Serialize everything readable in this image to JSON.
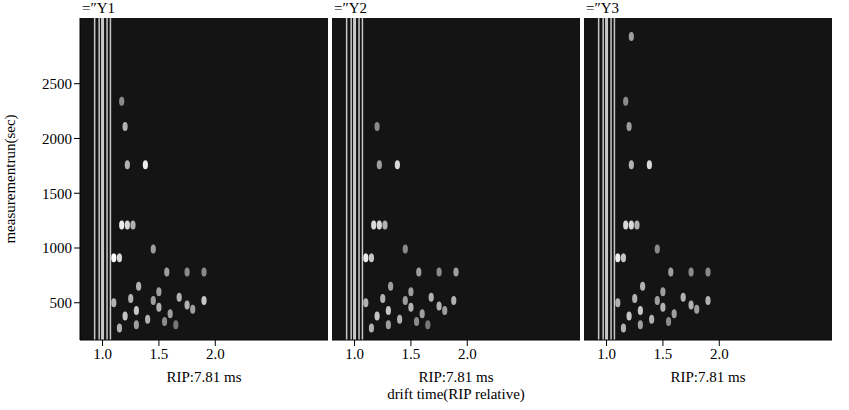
{
  "chart_data": {
    "type": "scatter",
    "ylabel": "measurementrun(sec)",
    "xlabel": "drift time(RIP relative)",
    "panel_xlabel": "RIP:7.81 ms",
    "xlim": [
      0.8,
      3.0
    ],
    "xticks": [
      {
        "value": 1,
        "label": "1.0"
      },
      {
        "value": 1.5,
        "label": "1.5"
      },
      {
        "value": 2,
        "label": "2.0"
      }
    ],
    "ylim": [
      160,
      3100
    ],
    "yticks": [
      500,
      1000,
      1500,
      2000,
      2500
    ],
    "grid": false,
    "panels": [
      {
        "title": "=″Y1",
        "streaks": [
          0.93,
          0.97,
          1.0,
          1.04,
          1.07
        ],
        "spots": [
          {
            "x": 1.38,
            "y": 1760,
            "intensity": 0.9
          },
          {
            "x": 1.22,
            "y": 1760,
            "intensity": 0.6
          },
          {
            "x": 1.17,
            "y": 1210,
            "intensity": 0.9
          },
          {
            "x": 1.22,
            "y": 1210,
            "intensity": 0.8
          },
          {
            "x": 1.27,
            "y": 1210,
            "intensity": 0.6
          },
          {
            "x": 1.1,
            "y": 910,
            "intensity": 1
          },
          {
            "x": 1.15,
            "y": 910,
            "intensity": 0.8
          },
          {
            "x": 1.2,
            "y": 2110,
            "intensity": 0.6
          },
          {
            "x": 1.17,
            "y": 2340,
            "intensity": 0.4
          },
          {
            "x": 1.45,
            "y": 990,
            "intensity": 0.5
          },
          {
            "x": 1.57,
            "y": 780,
            "intensity": 0.5
          },
          {
            "x": 1.75,
            "y": 780,
            "intensity": 0.4
          },
          {
            "x": 1.9,
            "y": 780,
            "intensity": 0.4
          },
          {
            "x": 1.32,
            "y": 650,
            "intensity": 0.6
          },
          {
            "x": 1.5,
            "y": 600,
            "intensity": 0.5
          },
          {
            "x": 1.68,
            "y": 550,
            "intensity": 0.6
          },
          {
            "x": 1.9,
            "y": 520,
            "intensity": 0.7
          },
          {
            "x": 1.75,
            "y": 480,
            "intensity": 0.6
          },
          {
            "x": 1.5,
            "y": 460,
            "intensity": 0.6
          },
          {
            "x": 1.3,
            "y": 430,
            "intensity": 0.7
          },
          {
            "x": 1.6,
            "y": 400,
            "intensity": 0.5
          },
          {
            "x": 1.4,
            "y": 350,
            "intensity": 0.6
          },
          {
            "x": 1.2,
            "y": 380,
            "intensity": 0.7
          },
          {
            "x": 1.55,
            "y": 330,
            "intensity": 0.4
          },
          {
            "x": 1.3,
            "y": 300,
            "intensity": 0.5
          },
          {
            "x": 1.15,
            "y": 270,
            "intensity": 0.6
          },
          {
            "x": 1.1,
            "y": 500,
            "intensity": 0.6
          },
          {
            "x": 1.25,
            "y": 540,
            "intensity": 0.6
          },
          {
            "x": 1.45,
            "y": 520,
            "intensity": 0.5
          },
          {
            "x": 1.8,
            "y": 440,
            "intensity": 0.5
          },
          {
            "x": 1.65,
            "y": 300,
            "intensity": 0.3
          }
        ]
      },
      {
        "title": "=″Y2",
        "streaks": [
          0.93,
          0.97,
          1.0,
          1.04,
          1.07
        ],
        "spots": [
          {
            "x": 1.38,
            "y": 1760,
            "intensity": 0.8
          },
          {
            "x": 1.22,
            "y": 1760,
            "intensity": 0.5
          },
          {
            "x": 1.17,
            "y": 1210,
            "intensity": 0.8
          },
          {
            "x": 1.22,
            "y": 1210,
            "intensity": 0.8
          },
          {
            "x": 1.27,
            "y": 1210,
            "intensity": 0.6
          },
          {
            "x": 1.1,
            "y": 910,
            "intensity": 0.9
          },
          {
            "x": 1.15,
            "y": 910,
            "intensity": 0.7
          },
          {
            "x": 1.2,
            "y": 2110,
            "intensity": 0.4
          },
          {
            "x": 1.45,
            "y": 990,
            "intensity": 0.4
          },
          {
            "x": 1.57,
            "y": 780,
            "intensity": 0.5
          },
          {
            "x": 1.75,
            "y": 780,
            "intensity": 0.4
          },
          {
            "x": 1.9,
            "y": 780,
            "intensity": 0.5
          },
          {
            "x": 1.32,
            "y": 650,
            "intensity": 0.5
          },
          {
            "x": 1.5,
            "y": 600,
            "intensity": 0.5
          },
          {
            "x": 1.68,
            "y": 550,
            "intensity": 0.6
          },
          {
            "x": 1.88,
            "y": 520,
            "intensity": 0.6
          },
          {
            "x": 1.75,
            "y": 470,
            "intensity": 0.6
          },
          {
            "x": 1.5,
            "y": 460,
            "intensity": 0.6
          },
          {
            "x": 1.3,
            "y": 430,
            "intensity": 0.7
          },
          {
            "x": 1.6,
            "y": 400,
            "intensity": 0.5
          },
          {
            "x": 1.4,
            "y": 350,
            "intensity": 0.6
          },
          {
            "x": 1.2,
            "y": 380,
            "intensity": 0.7
          },
          {
            "x": 1.55,
            "y": 330,
            "intensity": 0.4
          },
          {
            "x": 1.3,
            "y": 300,
            "intensity": 0.5
          },
          {
            "x": 1.15,
            "y": 270,
            "intensity": 0.6
          },
          {
            "x": 1.1,
            "y": 500,
            "intensity": 0.6
          },
          {
            "x": 1.25,
            "y": 540,
            "intensity": 0.6
          },
          {
            "x": 1.45,
            "y": 520,
            "intensity": 0.5
          },
          {
            "x": 1.8,
            "y": 430,
            "intensity": 0.5
          },
          {
            "x": 1.65,
            "y": 300,
            "intensity": 0.3
          }
        ]
      },
      {
        "title": "=″Y3",
        "streaks": [
          0.93,
          0.97,
          1.0,
          1.04,
          1.07
        ],
        "spots": [
          {
            "x": 1.38,
            "y": 1760,
            "intensity": 0.8
          },
          {
            "x": 1.22,
            "y": 1760,
            "intensity": 0.6
          },
          {
            "x": 1.22,
            "y": 2930,
            "intensity": 0.5
          },
          {
            "x": 1.17,
            "y": 1210,
            "intensity": 0.8
          },
          {
            "x": 1.22,
            "y": 1210,
            "intensity": 0.8
          },
          {
            "x": 1.27,
            "y": 1210,
            "intensity": 0.6
          },
          {
            "x": 1.1,
            "y": 910,
            "intensity": 0.9
          },
          {
            "x": 1.15,
            "y": 910,
            "intensity": 0.7
          },
          {
            "x": 1.2,
            "y": 2110,
            "intensity": 0.5
          },
          {
            "x": 1.17,
            "y": 2340,
            "intensity": 0.4
          },
          {
            "x": 1.45,
            "y": 990,
            "intensity": 0.4
          },
          {
            "x": 1.57,
            "y": 780,
            "intensity": 0.5
          },
          {
            "x": 1.75,
            "y": 780,
            "intensity": 0.4
          },
          {
            "x": 1.9,
            "y": 780,
            "intensity": 0.4
          },
          {
            "x": 1.32,
            "y": 650,
            "intensity": 0.6
          },
          {
            "x": 1.5,
            "y": 600,
            "intensity": 0.5
          },
          {
            "x": 1.68,
            "y": 550,
            "intensity": 0.6
          },
          {
            "x": 1.9,
            "y": 520,
            "intensity": 0.6
          },
          {
            "x": 1.75,
            "y": 480,
            "intensity": 0.6
          },
          {
            "x": 1.5,
            "y": 460,
            "intensity": 0.6
          },
          {
            "x": 1.3,
            "y": 430,
            "intensity": 0.7
          },
          {
            "x": 1.6,
            "y": 400,
            "intensity": 0.5
          },
          {
            "x": 1.4,
            "y": 350,
            "intensity": 0.6
          },
          {
            "x": 1.2,
            "y": 380,
            "intensity": 0.7
          },
          {
            "x": 1.55,
            "y": 330,
            "intensity": 0.4
          },
          {
            "x": 1.3,
            "y": 300,
            "intensity": 0.5
          },
          {
            "x": 1.15,
            "y": 270,
            "intensity": 0.6
          },
          {
            "x": 1.1,
            "y": 500,
            "intensity": 0.6
          },
          {
            "x": 1.25,
            "y": 540,
            "intensity": 0.6
          },
          {
            "x": 1.45,
            "y": 520,
            "intensity": 0.5
          },
          {
            "x": 1.8,
            "y": 440,
            "intensity": 0.5
          }
        ]
      }
    ]
  }
}
